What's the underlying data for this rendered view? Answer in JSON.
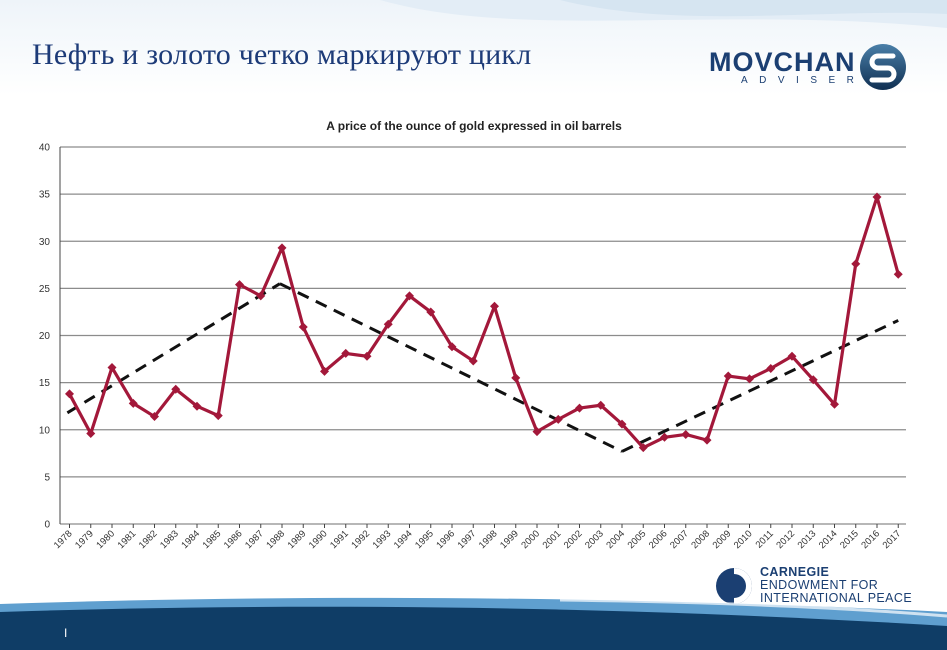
{
  "slide": {
    "title": "Нефть и золото четко маркируют цикл",
    "page_number": "I"
  },
  "logos": {
    "movchan_word": "MOVCHAN",
    "movchan_sub": "ADVISER",
    "carnegie_line1": "CARNEGIE",
    "carnegie_line2": "ENDOWMENT FOR",
    "carnegie_line3": "INTERNATIONAL PEACE"
  },
  "colors": {
    "title": "#1d3b78",
    "series": "#a3183a",
    "trend": "#111111",
    "grid": "#8c8c8c",
    "band_dark": "#0f3d66",
    "band_light": "#5f9fcf"
  },
  "chart_data": {
    "type": "line",
    "title": "A price of the ounce of gold expressed in oil barrels",
    "xlabel": "",
    "ylabel": "",
    "ylim": [
      0,
      40
    ],
    "yticks": [
      0,
      5,
      10,
      15,
      20,
      25,
      30,
      35,
      40
    ],
    "grid": true,
    "legend": "none",
    "categories": [
      "1978",
      "1979",
      "1980",
      "1981",
      "1982",
      "1983",
      "1984",
      "1985",
      "1986",
      "1987",
      "1988",
      "1989",
      "1990",
      "1991",
      "1992",
      "1993",
      "1994",
      "1995",
      "1996",
      "1997",
      "1998",
      "1999",
      "2000",
      "2001",
      "2002",
      "2003",
      "2004",
      "2005",
      "2006",
      "2007",
      "2008",
      "2009",
      "2010",
      "2011",
      "2012",
      "2013",
      "2014",
      "2015",
      "2016",
      "2017"
    ],
    "series": [
      {
        "values": [
          13.8,
          9.6,
          16.6,
          12.8,
          11.4,
          14.3,
          12.5,
          11.5,
          25.4,
          24.2,
          29.3,
          20.9,
          16.2,
          18.1,
          17.8,
          21.2,
          24.2,
          22.5,
          18.8,
          17.3,
          23.1,
          15.5,
          9.8,
          11.1,
          12.3,
          12.6,
          10.6,
          8.1,
          9.2,
          9.5,
          8.9,
          15.7,
          15.4,
          16.5,
          17.8,
          15.3,
          12.7,
          27.6,
          34.7,
          26.5
        ]
      }
    ],
    "trend_lines": [
      {
        "x": [
          1977.9,
          1987.9
        ],
        "y": [
          11.8,
          25.5
        ]
      },
      {
        "x": [
          1987.9,
          2004.0
        ],
        "y": [
          25.5,
          7.7
        ]
      },
      {
        "x": [
          2004.0,
          2017.0
        ],
        "y": [
          7.7,
          21.6
        ]
      }
    ]
  }
}
